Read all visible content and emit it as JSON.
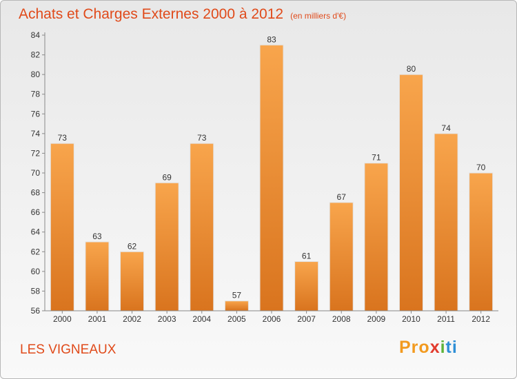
{
  "header": {
    "title": "Achats et Charges Externes 2000 à 2012",
    "unit": "(en milliers d'€)"
  },
  "footer": {
    "location": "LES VIGNEAUX",
    "logo": [
      "Pro",
      "x",
      "i",
      "ti"
    ]
  },
  "colors": {
    "title": "#e04a1a",
    "bar_light": "#f8a54c",
    "bar_dark": "#d9741e"
  },
  "chart_data": {
    "type": "bar",
    "title": "Achats et Charges Externes 2000 à 2012",
    "subtitle": "(en milliers d'€)",
    "categories": [
      "2000",
      "2001",
      "2002",
      "2003",
      "2004",
      "2005",
      "2006",
      "2007",
      "2008",
      "2009",
      "2010",
      "2011",
      "2012"
    ],
    "values": [
      73,
      63,
      62,
      69,
      73,
      57,
      83,
      61,
      67,
      71,
      80,
      74,
      70
    ],
    "ylim": [
      56,
      84
    ],
    "yticks": [
      56,
      58,
      60,
      62,
      64,
      66,
      68,
      70,
      72,
      74,
      76,
      78,
      80,
      82,
      84
    ],
    "grid": false,
    "data_labels": true
  }
}
